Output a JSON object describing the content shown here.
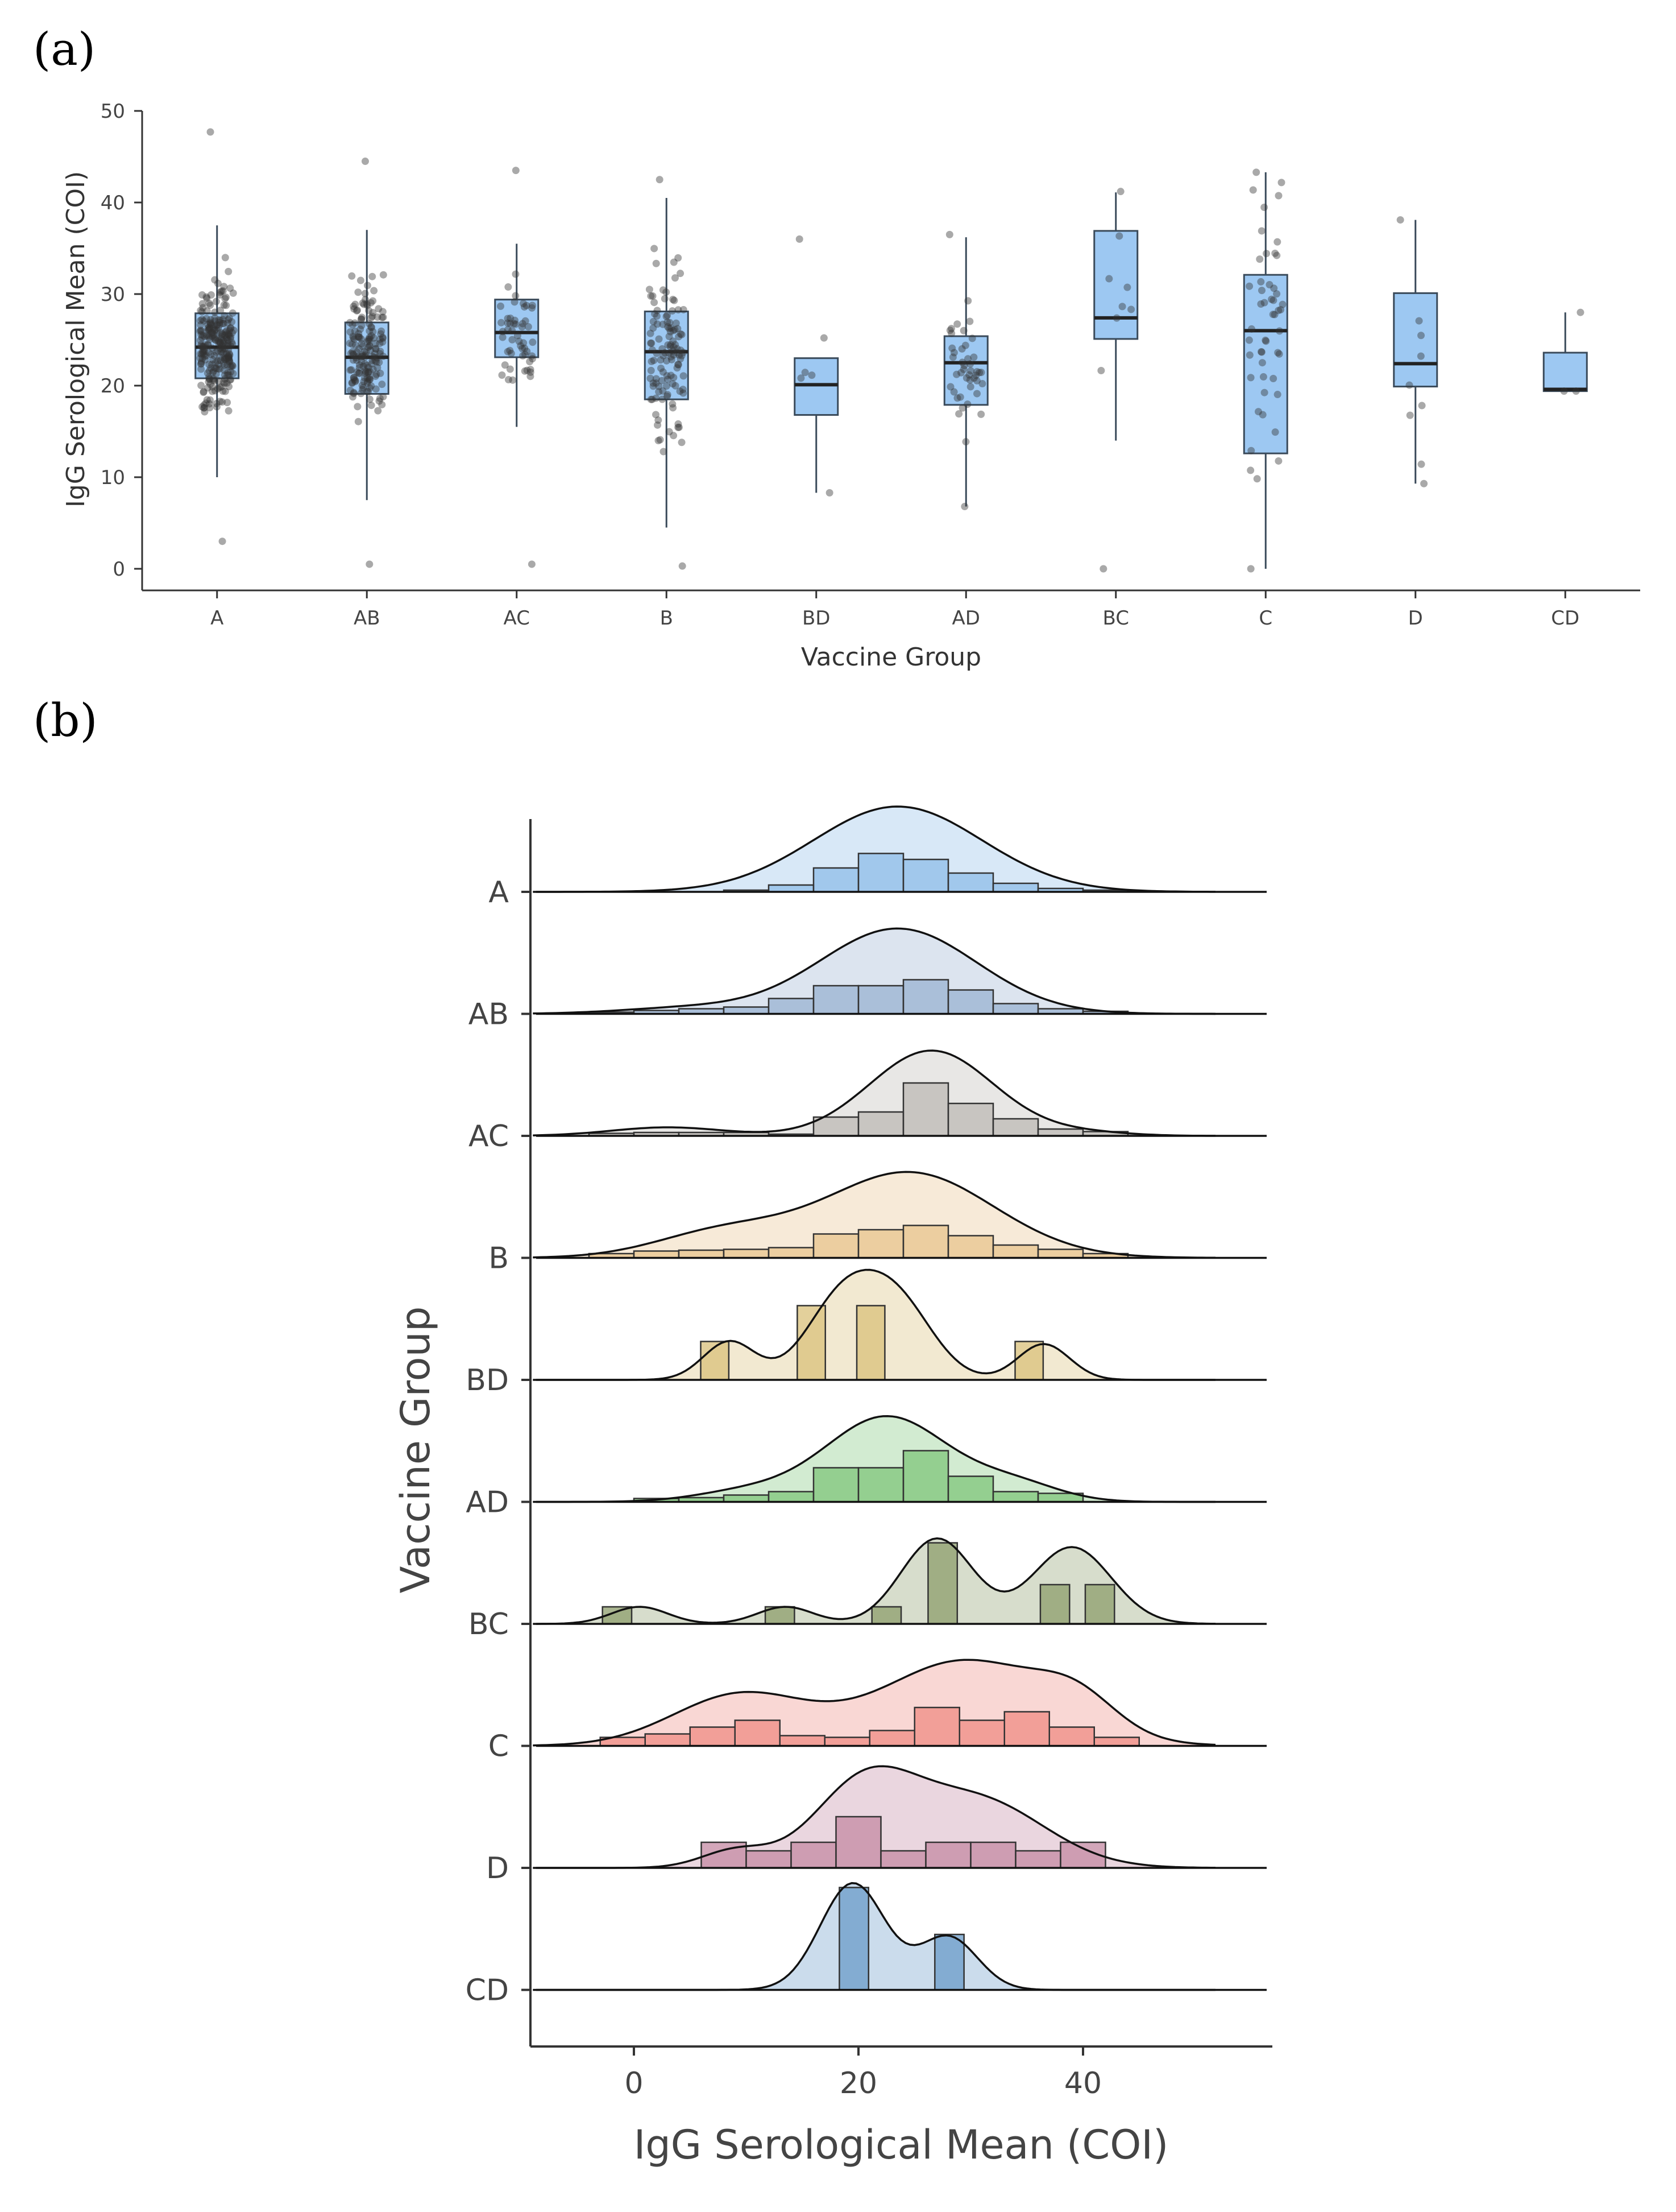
{
  "panel_labels": {
    "a": "(a)",
    "b": "(b)"
  },
  "colors": {
    "box_fill": "#9dc8f2",
    "box_stroke": "#3a4a5a",
    "point": "#333333",
    "axis": "#333333",
    "ridges": [
      "#8fbde8",
      "#9ab3d2",
      "#bdbab4",
      "#e8c48e",
      "#d9c07a",
      "#7fc67a",
      "#8d9e6c",
      "#ef8c84",
      "#c48aa3",
      "#6b9cc9"
    ]
  },
  "chart_data": [
    {
      "type": "box",
      "xlabel": "Vaccine Group",
      "ylabel": "IgG Serological Mean (COI)",
      "ylim": [
        0,
        50
      ],
      "yticks": [
        0,
        10,
        20,
        30,
        40,
        50
      ],
      "grid": false,
      "categories": [
        "A",
        "AB",
        "AC",
        "B",
        "BD",
        "AD",
        "BC",
        "C",
        "D",
        "CD"
      ],
      "boxes": [
        {
          "group": "A",
          "q1": 20.8,
          "median": 24.2,
          "q3": 27.9,
          "whisker_low": 10.0,
          "whisker_high": 37.5,
          "n_points": 260,
          "point_min": 3.0,
          "point_max": 47.7
        },
        {
          "group": "AB",
          "q1": 19.1,
          "median": 23.1,
          "q3": 26.9,
          "whisker_low": 7.5,
          "whisker_high": 37.0,
          "n_points": 170,
          "point_min": 0.5,
          "point_max": 44.5
        },
        {
          "group": "AC",
          "q1": 23.1,
          "median": 25.8,
          "q3": 29.4,
          "whisker_low": 15.5,
          "whisker_high": 35.5,
          "n_points": 55,
          "point_min": 0.5,
          "point_max": 43.5
        },
        {
          "group": "B",
          "q1": 18.5,
          "median": 23.7,
          "q3": 28.1,
          "whisker_low": 4.5,
          "whisker_high": 40.5,
          "n_points": 120,
          "point_min": 0.3,
          "point_max": 42.5
        },
        {
          "group": "BD",
          "q1": 16.8,
          "median": 20.1,
          "q3": 23.0,
          "whisker_low": 8.3,
          "whisker_high": 23.0,
          "n_points": 6,
          "point_min": 8.3,
          "point_max": 36.0
        },
        {
          "group": "AD",
          "q1": 17.9,
          "median": 22.5,
          "q3": 25.4,
          "whisker_low": 6.8,
          "whisker_high": 36.2,
          "n_points": 45,
          "point_min": 6.8,
          "point_max": 36.5
        },
        {
          "group": "BC",
          "q1": 25.1,
          "median": 27.4,
          "q3": 36.9,
          "whisker_low": 14.0,
          "whisker_high": 41.1,
          "n_points": 9,
          "point_min": 0.0,
          "point_max": 41.2
        },
        {
          "group": "C",
          "q1": 12.6,
          "median": 26.0,
          "q3": 32.1,
          "whisker_low": 0.0,
          "whisker_high": 43.3,
          "n_points": 50,
          "point_min": 0.0,
          "point_max": 43.3
        },
        {
          "group": "D",
          "q1": 19.9,
          "median": 22.4,
          "q3": 30.1,
          "whisker_low": 9.3,
          "whisker_high": 38.1,
          "n_points": 9,
          "point_min": 9.3,
          "point_max": 38.1
        },
        {
          "group": "CD",
          "q1": 19.4,
          "median": 19.6,
          "q3": 23.6,
          "whisker_low": 19.4,
          "whisker_high": 28.0,
          "n_points": 3,
          "point_min": 19.4,
          "point_max": 28.0
        }
      ]
    },
    {
      "type": "ridgeline",
      "xlabel": "IgG Serological Mean (COI)",
      "ylabel": "Vaccine Group",
      "xlim": [
        -10,
        57
      ],
      "xticks": [
        0,
        20,
        40
      ],
      "grid": false,
      "groups": [
        "A",
        "AB",
        "AC",
        "B",
        "BD",
        "AD",
        "BC",
        "C",
        "D",
        "CD"
      ],
      "series": [
        {
          "group": "A",
          "peaks": [
            [
              23.5,
              1.0,
              7.5
            ]
          ],
          "hist_x": [
            -2,
            2,
            6,
            10,
            14,
            18,
            22,
            26,
            30,
            34,
            38,
            42,
            46
          ],
          "hist_y": [
            0.0,
            0.0,
            0.0,
            0.02,
            0.08,
            0.28,
            0.45,
            0.38,
            0.22,
            0.1,
            0.04,
            0.02,
            0.0
          ]
        },
        {
          "group": "AB",
          "peaks": [
            [
              23.5,
              1.0,
              7.0
            ],
            [
              5.0,
              0.07,
              6.0
            ]
          ],
          "hist_x": [
            -2,
            2,
            6,
            10,
            14,
            18,
            22,
            26,
            30,
            34,
            38,
            42,
            46
          ],
          "hist_y": [
            0.02,
            0.04,
            0.06,
            0.08,
            0.18,
            0.33,
            0.33,
            0.4,
            0.28,
            0.12,
            0.06,
            0.03,
            0.0
          ]
        },
        {
          "group": "AC",
          "peaks": [
            [
              26.5,
              1.0,
              5.5
            ],
            [
              3.0,
              0.1,
              5.0
            ],
            [
              40.0,
              0.04,
              4.0
            ]
          ],
          "hist_x": [
            -2,
            2,
            6,
            10,
            14,
            18,
            22,
            26,
            30,
            34,
            38,
            42,
            46
          ],
          "hist_y": [
            0.03,
            0.04,
            0.04,
            0.04,
            0.02,
            0.22,
            0.28,
            0.62,
            0.38,
            0.2,
            0.08,
            0.05,
            0.0
          ]
        },
        {
          "group": "B",
          "peaks": [
            [
              24.5,
              1.0,
              7.5
            ],
            [
              8.0,
              0.3,
              6.0
            ]
          ],
          "hist_x": [
            -2,
            2,
            6,
            10,
            14,
            18,
            22,
            26,
            30,
            34,
            38,
            42,
            46
          ],
          "hist_y": [
            0.05,
            0.08,
            0.09,
            0.1,
            0.12,
            0.28,
            0.33,
            0.38,
            0.26,
            0.15,
            0.1,
            0.05,
            0.0
          ]
        },
        {
          "group": "BD",
          "peaks": [
            [
              8.5,
              0.45,
              2.3
            ],
            [
              18.5,
              0.9,
              3.2
            ],
            [
              23.5,
              0.85,
              3.2
            ],
            [
              36.5,
              0.42,
              2.3
            ]
          ],
          "hist_x": [
            7.2,
            15.8,
            21.1,
            35.2
          ],
          "hist_y": [
            0.45,
            0.87,
            0.87,
            0.45
          ],
          "bin_width": 2.5
        },
        {
          "group": "AD",
          "peaks": [
            [
              22.5,
              1.0,
              5.5
            ],
            [
              10.0,
              0.12,
              4.5
            ],
            [
              34.0,
              0.2,
              4.0
            ]
          ],
          "hist_x": [
            2,
            6,
            10,
            14,
            18,
            22,
            26,
            30,
            34,
            38
          ],
          "hist_y": [
            0.04,
            0.05,
            0.08,
            0.12,
            0.4,
            0.4,
            0.6,
            0.3,
            0.12,
            0.1
          ]
        },
        {
          "group": "BC",
          "peaks": [
            [
              27.0,
              1.0,
              3.2
            ],
            [
              39.0,
              0.9,
              3.5
            ],
            [
              0.5,
              0.2,
              2.5
            ],
            [
              13.5,
              0.2,
              2.5
            ]
          ],
          "hist_x": [
            -1.5,
            13,
            22.5,
            27.5,
            37.5,
            41.5
          ],
          "hist_y": [
            0.2,
            0.2,
            0.2,
            0.95,
            0.46,
            0.46
          ],
          "bin_width": 2.6
        },
        {
          "group": "C",
          "peaks": [
            [
              29.5,
              1.0,
              7.5
            ],
            [
              9.5,
              0.6,
              6.0
            ],
            [
              39.5,
              0.35,
              3.5
            ]
          ],
          "hist_x": [
            -1,
            3,
            7,
            11,
            15,
            19,
            23,
            27,
            31,
            35,
            39,
            43
          ],
          "hist_y": [
            0.1,
            0.14,
            0.22,
            0.3,
            0.12,
            0.1,
            0.18,
            0.45,
            0.3,
            0.4,
            0.22,
            0.1
          ]
        },
        {
          "group": "D",
          "peaks": [
            [
              20.5,
              0.95,
              4.5
            ],
            [
              30.5,
              0.8,
              6.0
            ],
            [
              9.0,
              0.2,
              3.0
            ]
          ],
          "hist_x": [
            8,
            12,
            16,
            20,
            24,
            28,
            32,
            36,
            40
          ],
          "hist_y": [
            0.3,
            0.2,
            0.3,
            0.6,
            0.2,
            0.3,
            0.3,
            0.2,
            0.3
          ]
        },
        {
          "group": "CD",
          "peaks": [
            [
              19.5,
              1.25,
              2.9
            ],
            [
              28.0,
              0.62,
              2.6
            ]
          ],
          "hist_x": [
            19.6,
            28.1
          ],
          "hist_y": [
            1.2,
            0.65
          ],
          "bin_width": 2.6
        }
      ]
    }
  ]
}
